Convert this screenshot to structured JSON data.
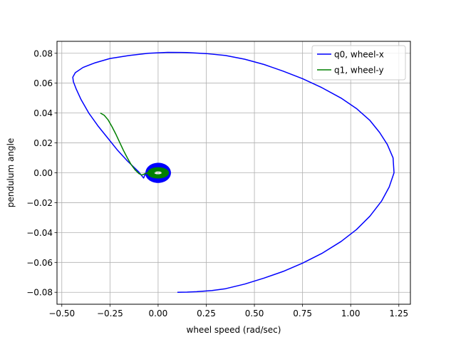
{
  "chart_data": {
    "type": "line",
    "title": "",
    "xlabel": "wheel speed (rad/sec)",
    "ylabel": "pendulum angle",
    "xlim": [
      -0.525,
      1.31
    ],
    "ylim": [
      -0.088,
      0.088
    ],
    "x_ticks": [
      -0.5,
      -0.25,
      0.0,
      0.25,
      0.5,
      0.75,
      1.0,
      1.25
    ],
    "x_tick_labels": [
      "−0.50",
      "−0.25",
      "0.00",
      "0.25",
      "0.50",
      "0.75",
      "1.00",
      "1.25"
    ],
    "y_ticks": [
      -0.08,
      -0.06,
      -0.04,
      -0.02,
      0.0,
      0.02,
      0.04,
      0.06,
      0.08
    ],
    "y_tick_labels": [
      "−0.08",
      "−0.06",
      "−0.04",
      "−0.02",
      "0.00",
      "0.02",
      "0.04",
      "0.06",
      "0.08"
    ],
    "grid": true,
    "legend_position": "upper right",
    "series": [
      {
        "name": "q0, wheel-x",
        "color": "#0000ff",
        "points": [
          [
            0.1,
            -0.08
          ],
          [
            0.15,
            -0.0799
          ],
          [
            0.2,
            -0.0796
          ],
          [
            0.28,
            -0.0788
          ],
          [
            0.35,
            -0.0776
          ],
          [
            0.45,
            -0.0745
          ],
          [
            0.55,
            -0.0705
          ],
          [
            0.65,
            -0.066
          ],
          [
            0.75,
            -0.0605
          ],
          [
            0.85,
            -0.054
          ],
          [
            0.95,
            -0.046
          ],
          [
            1.03,
            -0.038
          ],
          [
            1.1,
            -0.029
          ],
          [
            1.16,
            -0.019
          ],
          [
            1.2,
            -0.0095
          ],
          [
            1.225,
            0.0
          ],
          [
            1.22,
            0.01
          ],
          [
            1.19,
            0.019
          ],
          [
            1.15,
            0.027
          ],
          [
            1.1,
            0.035
          ],
          [
            1.03,
            0.043
          ],
          [
            0.95,
            0.05
          ],
          [
            0.85,
            0.057
          ],
          [
            0.75,
            0.063
          ],
          [
            0.65,
            0.068
          ],
          [
            0.55,
            0.0725
          ],
          [
            0.45,
            0.076
          ],
          [
            0.35,
            0.0785
          ],
          [
            0.25,
            0.0798
          ],
          [
            0.15,
            0.0805
          ],
          [
            0.05,
            0.0806
          ],
          [
            -0.05,
            0.08
          ],
          [
            -0.15,
            0.0785
          ],
          [
            -0.25,
            0.0765
          ],
          [
            -0.33,
            0.0735
          ],
          [
            -0.39,
            0.0705
          ],
          [
            -0.43,
            0.067
          ],
          [
            -0.443,
            0.064
          ],
          [
            -0.44,
            0.061
          ],
          [
            -0.425,
            0.056
          ],
          [
            -0.4,
            0.049
          ],
          [
            -0.36,
            0.04
          ],
          [
            -0.31,
            0.031
          ],
          [
            -0.26,
            0.023
          ],
          [
            -0.21,
            0.015
          ],
          [
            -0.16,
            0.008
          ],
          [
            -0.12,
            0.003
          ],
          [
            -0.1,
            0.0005
          ],
          [
            -0.085,
            -0.002
          ],
          [
            -0.075,
            -0.0035
          ]
        ],
        "spiral": {
          "center": [
            0.0,
            0.0
          ],
          "outer_radius": [
            0.065,
            0.0065
          ],
          "inner_radius": [
            0.025,
            0.0025
          ],
          "turns": 18
        }
      },
      {
        "name": "q1, wheel-y",
        "color": "#008000",
        "points": [
          [
            -0.3,
            0.04
          ],
          [
            -0.28,
            0.0385
          ],
          [
            -0.26,
            0.0355
          ],
          [
            -0.24,
            0.031
          ],
          [
            -0.22,
            0.026
          ],
          [
            -0.2,
            0.0205
          ],
          [
            -0.18,
            0.015
          ],
          [
            -0.16,
            0.01
          ],
          [
            -0.14,
            0.0055
          ],
          [
            -0.12,
            0.002
          ],
          [
            -0.1,
            -0.0005
          ],
          [
            -0.085,
            -0.0015
          ]
        ],
        "spiral": {
          "center": [
            0.0,
            0.0
          ],
          "outer_radius": [
            0.055,
            0.0035
          ],
          "inner_radius": [
            0.02,
            0.0012
          ],
          "turns": 12
        }
      }
    ]
  }
}
